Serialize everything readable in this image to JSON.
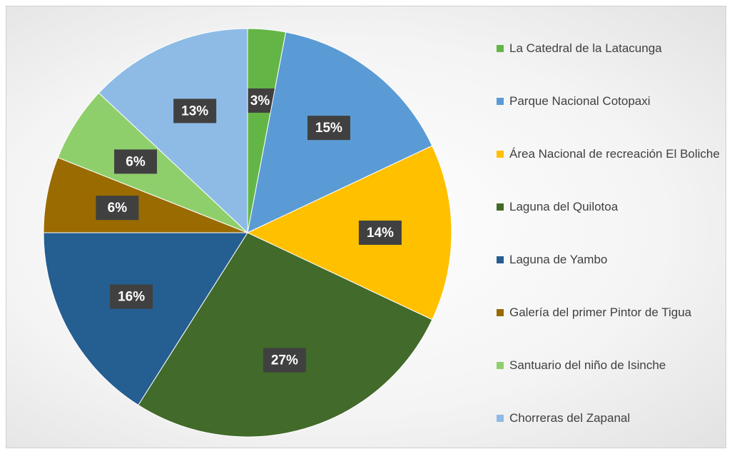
{
  "chart_data": {
    "type": "pie",
    "categories": [
      "La Catedral de la Latacunga",
      "Parque Nacional Cotopaxi",
      "Área Nacional de recreación El Boliche",
      "Laguna del Quilotoa",
      "Laguna de Yambo",
      "Galería del primer Pintor de Tigua",
      "Santuario del niño de Isinche",
      "Chorreras del Zapanal"
    ],
    "values": [
      3,
      15,
      14,
      27,
      16,
      6,
      6,
      13
    ],
    "value_labels": [
      "3%",
      "15%",
      "14%",
      "27%",
      "16%",
      "6%",
      "6%",
      "13%"
    ],
    "colors": [
      "#63b646",
      "#5b9bd5",
      "#ffc000",
      "#426a2a",
      "#255e91",
      "#9a6b00",
      "#8fcf6b",
      "#8dbbe6"
    ],
    "legend": "right"
  }
}
